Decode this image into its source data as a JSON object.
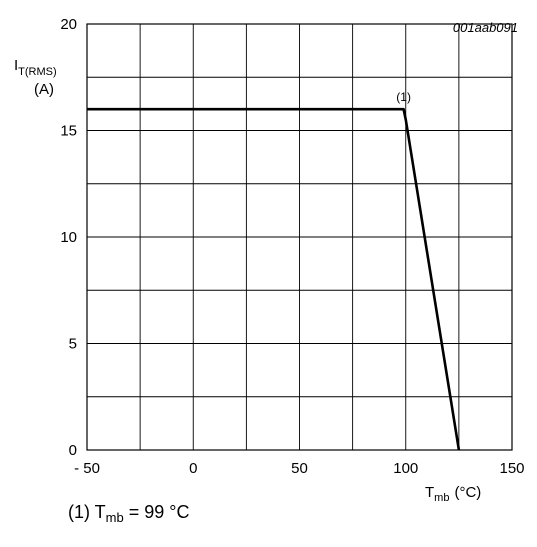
{
  "chart_data": {
    "type": "line",
    "figure_id": "001aab091",
    "y_axis": {
      "symbol": "I",
      "subscript": "T(RMS)",
      "unit": "(A)",
      "range": [
        0,
        20
      ],
      "ticks": [
        "0",
        "5",
        "10",
        "15",
        "20"
      ]
    },
    "x_axis": {
      "symbol": "T",
      "subscript": "mb",
      "unit": "(°C)",
      "range": [
        -50,
        150
      ],
      "ticks": [
        "- 50",
        "0",
        "50",
        "100",
        "150"
      ]
    },
    "grid": true,
    "series": [
      {
        "x": [
          -50,
          99,
          100,
          125
        ],
        "y": [
          16,
          16,
          15.5,
          0
        ]
      }
    ],
    "annotation": {
      "label": "(1)",
      "x": 99,
      "y": 16
    },
    "footnote": {
      "prefix": "(1) T",
      "subscript": "mb",
      "suffix": " = 99 °C"
    }
  },
  "colors": {
    "line": "#000000",
    "grid": "#000000",
    "background": "#ffffff"
  }
}
